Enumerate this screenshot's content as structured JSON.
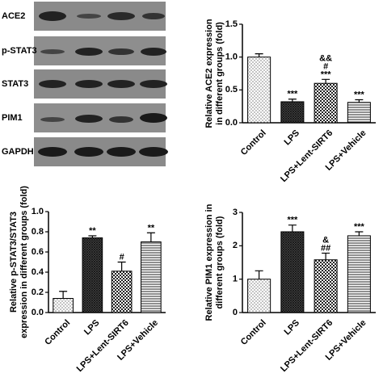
{
  "blot": {
    "labels": [
      "ACE2",
      "p-STAT3",
      "STAT3",
      "PIM1",
      "GAPDH"
    ]
  },
  "chart_data": [
    {
      "type": "bar",
      "ylabel": [
        "Relative ACE2 expression",
        "in different groups (fold)"
      ],
      "categories": [
        "Control",
        "LPS",
        "LPS+Lent-SIRT6",
        "LPS+Vehicle"
      ],
      "values": [
        1.0,
        0.32,
        0.6,
        0.31
      ],
      "errors": [
        0.05,
        0.04,
        0.06,
        0.04
      ],
      "annotations": [
        [],
        [
          "***"
        ],
        [
          "&&",
          "#",
          "***"
        ],
        [
          "***"
        ]
      ],
      "ylim": [
        0,
        1.5
      ],
      "yticks": [
        {
          "value": 0,
          "label": "0.0"
        },
        0.5,
        {
          "value": 1,
          "label": "1.0"
        },
        1.5
      ]
    },
    {
      "type": "bar",
      "ylabel": [
        "Relative p-STAT3/STAT3",
        "expression in different groups (fold)"
      ],
      "categories": [
        "Control",
        "LPS",
        "LPS+Lent-SIRT6",
        "LPS+Vehicle"
      ],
      "values": [
        0.14,
        0.74,
        0.41,
        0.7
      ],
      "errors": [
        0.07,
        0.02,
        0.09,
        0.09
      ],
      "annotations": [
        [],
        [
          "**"
        ],
        [
          "#"
        ],
        [
          "**"
        ]
      ],
      "ylim": [
        0,
        1
      ],
      "yticks": [
        {
          "value": 0,
          "label": "0.0"
        },
        0.2,
        0.4,
        0.6,
        0.8,
        {
          "value": 1,
          "label": "1.0"
        }
      ]
    },
    {
      "type": "bar",
      "ylabel": [
        "Relative PIM1 expression in",
        "different groups (fold)"
      ],
      "categories": [
        "Control",
        "LPS",
        "LPS+Lent-SIRT6",
        "LPS+Vehicle"
      ],
      "values": [
        1.0,
        2.42,
        1.58,
        2.3
      ],
      "errors": [
        0.25,
        0.2,
        0.2,
        0.12
      ],
      "annotations": [
        [],
        [
          "***"
        ],
        [
          "&",
          "##"
        ],
        [
          "***"
        ]
      ],
      "ylim": [
        0,
        3
      ],
      "yticks": [
        0,
        1,
        2,
        3
      ]
    }
  ]
}
